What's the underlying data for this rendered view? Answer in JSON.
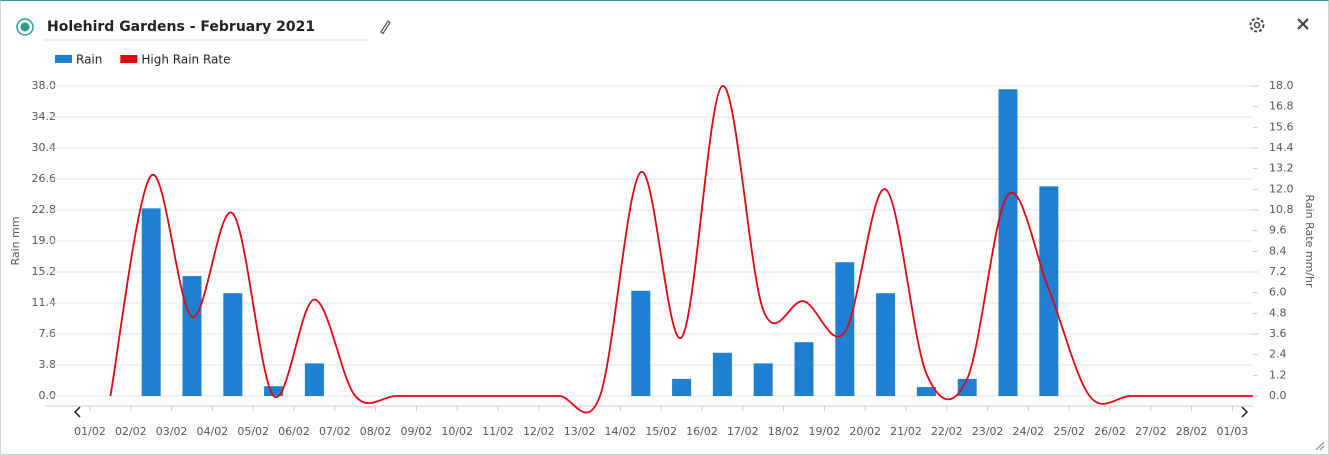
{
  "chart_data": {
    "type": "bar",
    "title": "Holehird Gardens - February 2021",
    "ylabel": "Rain mm",
    "y2label": "Rain Rate mm/hr",
    "categories": [
      "01/02",
      "02/02",
      "03/02",
      "04/02",
      "05/02",
      "06/02",
      "07/02",
      "08/02",
      "09/02",
      "10/02",
      "11/02",
      "12/02",
      "13/02",
      "14/02",
      "15/02",
      "16/02",
      "17/02",
      "18/02",
      "19/02",
      "20/02",
      "21/02",
      "22/02",
      "23/02",
      "24/02",
      "25/02",
      "26/02",
      "27/02",
      "28/02",
      "01/03"
    ],
    "series": [
      {
        "name": "Rain",
        "type": "bar",
        "color": "#1f80d2",
        "values": [
          0,
          23.0,
          14.7,
          12.6,
          1.2,
          4.0,
          0,
          0,
          0,
          0,
          0,
          0,
          0,
          12.9,
          2.1,
          5.3,
          4.0,
          6.6,
          16.4,
          12.6,
          1.1,
          2.1,
          37.6,
          25.7,
          0,
          0,
          0,
          0,
          null
        ]
      },
      {
        "name": "High Rain Rate",
        "type": "line",
        "axis": "y2",
        "color": "#e30613",
        "values": [
          0,
          12.8,
          4.6,
          10.6,
          0,
          5.6,
          0,
          0,
          0,
          0,
          0,
          0,
          0,
          13.0,
          3.4,
          18.0,
          5.0,
          5.5,
          3.7,
          12.0,
          1.3,
          1.0,
          11.7,
          6.2,
          0,
          0,
          0,
          0,
          0
        ]
      }
    ],
    "ylim": [
      0,
      38
    ],
    "yticks": [
      {
        "value": 0,
        "label": "0.0"
      },
      3.8,
      7.6,
      11.4,
      15.2,
      {
        "value": 19,
        "label": "19.0"
      },
      22.8,
      26.6,
      30.4,
      34.2,
      {
        "value": 38,
        "label": "38.0"
      }
    ],
    "y2lim": [
      0,
      18
    ],
    "y2ticks": [
      {
        "value": 0,
        "label": "0.0"
      },
      1.2,
      2.4,
      3.6,
      4.8,
      {
        "value": 6,
        "label": "6.0"
      },
      7.2,
      8.4,
      9.6,
      10.8,
      {
        "value": 12,
        "label": "12.0"
      },
      13.2,
      14.4,
      15.6,
      16.8,
      {
        "value": 18,
        "label": "18.0"
      }
    ],
    "grid": true,
    "legend": "top-left"
  }
}
